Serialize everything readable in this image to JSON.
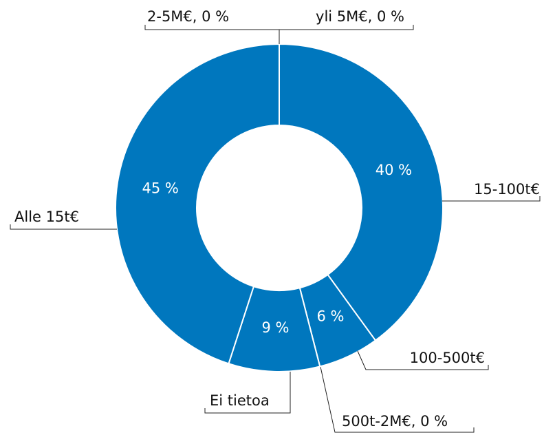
{
  "chart_data": {
    "type": "donut",
    "categories": [
      "15-100t€",
      "100-500t€",
      "500t-2M€, 0 %",
      "Ei tietoa",
      "Alle 15t€",
      "2-5M€, 0 %",
      "yli 5M€, 0 %"
    ],
    "values": [
      40,
      6,
      0,
      9,
      45,
      0,
      0
    ],
    "value_labels": [
      "40 %",
      "6 %",
      null,
      "9 %",
      "45 %",
      null,
      null
    ],
    "color": "#0077be"
  }
}
